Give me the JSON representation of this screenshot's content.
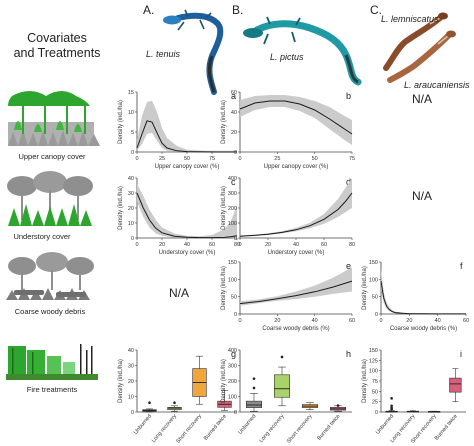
{
  "figure": {
    "main_title_line1": "Covariates",
    "main_title_line2": "and Treatments",
    "columns": [
      {
        "letter": "A.",
        "species": "L. tenuis"
      },
      {
        "letter": "B.",
        "species": "L. pictus"
      },
      {
        "letter": "C.",
        "species_top": "L. lemniscatus",
        "species_bottom": "L. araucaniensis"
      }
    ],
    "rows": [
      {
        "label": "Upper canopy cover"
      },
      {
        "label": "Understory cover"
      },
      {
        "label": "Coarse woody debris"
      },
      {
        "label": "Fire treatments"
      }
    ],
    "na_text": "N/A",
    "colors": {
      "curve": "#1a1a1a",
      "band": "#c8c8c8",
      "tree_green": "#2ea52e",
      "tree_gray": "#8f8f8f",
      "box_colors": [
        "#8c8c8c",
        "#a8d26a",
        "#f0a63c",
        "#d9607a"
      ]
    }
  },
  "chart_data": [
    {
      "id": "a",
      "type": "line",
      "column": "L. tenuis",
      "covariate": "Upper canopy cover",
      "xlabel": "Upper canopy cover  (%)",
      "ylabel": "Density (ind./ha)",
      "xlim": [
        0,
        100
      ],
      "ylim": [
        0,
        15
      ],
      "xticks": [
        0,
        25,
        50,
        75
      ],
      "yticks": [
        0,
        5,
        10,
        15
      ],
      "x": [
        0,
        5,
        10,
        15,
        20,
        25,
        30,
        40,
        50,
        60,
        70,
        80,
        90,
        100
      ],
      "y": [
        1.0,
        4.5,
        7.8,
        7.5,
        4.8,
        2.2,
        1.0,
        0.3,
        0.1,
        0.05,
        0.02,
        0.01,
        0.01,
        0.01
      ],
      "ci_low": [
        0.3,
        2.0,
        4.5,
        4.8,
        2.8,
        1.0,
        0.3,
        0.05,
        0,
        0,
        0,
        0,
        0,
        0
      ],
      "ci_high": [
        3.0,
        9.0,
        12.5,
        12.8,
        10.0,
        6.0,
        3.5,
        1.5,
        0.6,
        0.4,
        0.3,
        0.3,
        0.3,
        0.3
      ]
    },
    {
      "id": "b",
      "type": "line",
      "column": "L. pictus",
      "covariate": "Upper canopy cover",
      "xlabel": "Upper canopy cover  (%)",
      "ylabel": "Density (ind./ha)",
      "xlim": [
        0,
        75
      ],
      "ylim": [
        0,
        60
      ],
      "xticks": [
        0,
        25,
        50,
        75
      ],
      "yticks": [
        0,
        20,
        40,
        60
      ],
      "x": [
        0,
        10,
        20,
        30,
        40,
        50,
        60,
        70,
        75
      ],
      "y": [
        43,
        49,
        51,
        51,
        48,
        42,
        33,
        23,
        18
      ],
      "ci_low": [
        35,
        42,
        45,
        45,
        41,
        34,
        23,
        12,
        7
      ],
      "ci_high": [
        52,
        56,
        57,
        57,
        55,
        51,
        45,
        36,
        32
      ]
    },
    {
      "id": "c",
      "type": "line",
      "column": "L. tenuis",
      "covariate": "Understory cover",
      "xlabel": "Understory cover  (%)",
      "ylabel": "Density (ind./ha)",
      "xlim": [
        0,
        80
      ],
      "ylim": [
        0,
        40
      ],
      "xticks": [
        0,
        20,
        40,
        60,
        80
      ],
      "yticks": [
        0,
        10,
        20,
        30,
        40
      ],
      "x": [
        0,
        5,
        10,
        15,
        20,
        30,
        40,
        50,
        60,
        70,
        75,
        80
      ],
      "y": [
        30,
        20,
        12,
        6.5,
        3.5,
        1.2,
        0.5,
        0.3,
        0.3,
        0.4,
        0.8,
        1.5
      ],
      "ci_low": [
        24,
        14,
        7,
        3,
        1.5,
        0.3,
        0.1,
        0,
        0,
        0,
        0.1,
        0.2
      ],
      "ci_high": [
        36,
        28,
        19,
        12,
        7,
        3,
        1.5,
        1.2,
        2,
        6,
        11,
        22
      ]
    },
    {
      "id": "d",
      "type": "line",
      "column": "L. pictus",
      "covariate": "Understory cover",
      "xlabel": "Understory cover  (%)",
      "ylabel": "Density (ind./ha)",
      "xlim": [
        0,
        80
      ],
      "ylim": [
        0,
        400
      ],
      "xticks": [
        0,
        20,
        40,
        60,
        80
      ],
      "yticks": [
        0,
        100,
        200,
        300,
        400
      ],
      "x": [
        0,
        10,
        20,
        30,
        40,
        50,
        60,
        70,
        75,
        80
      ],
      "y": [
        12,
        17,
        25,
        37,
        55,
        82,
        125,
        190,
        240,
        300
      ],
      "ci_low": [
        8,
        13,
        20,
        30,
        45,
        65,
        95,
        140,
        170,
        200
      ],
      "ci_high": [
        18,
        22,
        31,
        45,
        67,
        102,
        160,
        260,
        330,
        400
      ]
    },
    {
      "id": "e",
      "type": "line",
      "column": "L. pictus",
      "covariate": "Coarse woody debris",
      "xlabel": "Coarse woody debris  (%)",
      "ylabel": "Density (ind./ha)",
      "xlim": [
        0,
        60
      ],
      "ylim": [
        0,
        150
      ],
      "xticks": [
        0,
        20,
        40,
        60
      ],
      "yticks": [
        0,
        50,
        100,
        150
      ],
      "x": [
        0,
        10,
        20,
        30,
        40,
        50,
        60
      ],
      "y": [
        30,
        36,
        44,
        53,
        64,
        78,
        95
      ],
      "ci_low": [
        24,
        31,
        38,
        43,
        50,
        58,
        65
      ],
      "ci_high": [
        37,
        42,
        51,
        65,
        82,
        105,
        135
      ]
    },
    {
      "id": "f",
      "type": "line",
      "column": "L. lemniscatus / L. araucaniensis",
      "covariate": "Coarse woody debris",
      "xlabel": "Coarse woody debris  (%)",
      "ylabel": "Density (ind./ha)",
      "xlim": [
        0,
        60
      ],
      "ylim": [
        0,
        150
      ],
      "xticks": [
        0,
        20,
        40,
        60
      ],
      "yticks": [
        0,
        50,
        100,
        150
      ],
      "x": [
        0,
        2,
        4,
        6,
        8,
        10,
        15,
        20,
        30,
        40,
        50,
        60
      ],
      "y": [
        95,
        45,
        22,
        12,
        7,
        4,
        2,
        1,
        0.5,
        0.3,
        0.2,
        0.2
      ],
      "ci_low": [
        70,
        32,
        15,
        8,
        4,
        2,
        1,
        0.5,
        0.2,
        0.1,
        0.1,
        0.1
      ],
      "ci_high": [
        130,
        62,
        32,
        18,
        11,
        7,
        4,
        2.5,
        1.5,
        1.2,
        1,
        1
      ]
    },
    {
      "id": "g",
      "type": "box",
      "column": "L. tenuis",
      "covariate": "Fire treatments",
      "ylabel": "Density (ind./ha)",
      "ylim": [
        0,
        40
      ],
      "yticks": [
        0,
        10,
        20,
        30,
        40
      ],
      "categories": [
        "Unburned",
        "Long recovery",
        "Short recovery",
        "Burned twice"
      ],
      "boxes": [
        {
          "min": 0,
          "q1": 0.5,
          "median": 1,
          "q3": 1.5,
          "max": 2,
          "outliers": [
            6
          ]
        },
        {
          "min": 0.5,
          "q1": 1.5,
          "median": 2.5,
          "q3": 3,
          "max": 4,
          "outliers": [
            6
          ]
        },
        {
          "min": 5,
          "q1": 10,
          "median": 19,
          "q3": 28,
          "max": 36,
          "outliers": []
        },
        {
          "min": 1,
          "q1": 3,
          "median": 5,
          "q3": 7,
          "max": 14,
          "outliers": []
        }
      ]
    },
    {
      "id": "h",
      "type": "box",
      "column": "L. pictus",
      "covariate": "Fire treatments",
      "ylabel": "Density (ind./ha)",
      "ylim": [
        0,
        400
      ],
      "yticks": [
        0,
        100,
        200,
        300,
        400
      ],
      "categories": [
        "Unburned",
        "Long recovery",
        "Short recovery",
        "Burned twice"
      ],
      "boxes": [
        {
          "min": 5,
          "q1": 28,
          "median": 45,
          "q3": 70,
          "max": 120,
          "outliers": [
            155,
            215
          ]
        },
        {
          "min": 40,
          "q1": 95,
          "median": 150,
          "q3": 240,
          "max": 290,
          "outliers": [
            355
          ]
        },
        {
          "min": 15,
          "q1": 28,
          "median": 38,
          "q3": 48,
          "max": 60,
          "outliers": []
        },
        {
          "min": 5,
          "q1": 12,
          "median": 20,
          "q3": 30,
          "max": 40,
          "outliers": [
            42
          ]
        }
      ]
    },
    {
      "id": "i",
      "type": "box",
      "column": "L. lemniscatus / L. araucaniensis",
      "covariate": "Fire treatments",
      "ylabel": "Density (ind./ha)",
      "ylim": [
        0,
        150
      ],
      "yticks": [
        0,
        25,
        50,
        75,
        100,
        125,
        150
      ],
      "categories": [
        "Unburned",
        "Long recovery",
        "Short recovery",
        "Burned twice"
      ],
      "boxes": [
        {
          "min": 0,
          "q1": 0.5,
          "median": 1,
          "q3": 2,
          "max": 4,
          "outliers": [
            7,
            10,
            15,
            33
          ]
        },
        {
          "min": 0,
          "q1": 0.5,
          "median": 1,
          "q3": 2,
          "max": 3,
          "outliers": []
        },
        {
          "min": 0,
          "q1": 0.5,
          "median": 1,
          "q3": 1.5,
          "max": 2,
          "outliers": []
        },
        {
          "min": 25,
          "q1": 48,
          "median": 68,
          "q3": 82,
          "max": 105,
          "outliers": []
        }
      ]
    }
  ]
}
